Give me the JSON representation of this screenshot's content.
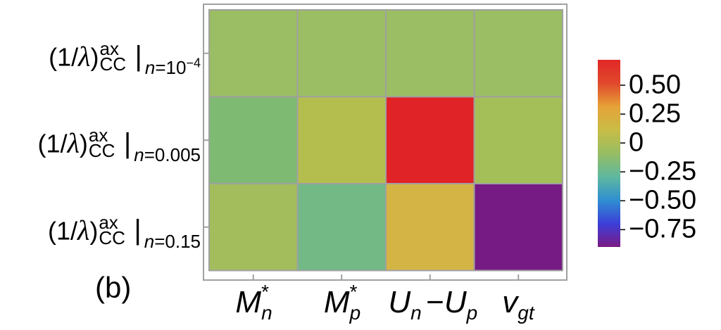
{
  "chart_data": {
    "type": "heatmap",
    "panel_label": "(b)",
    "columns": [
      {
        "main": "M",
        "sup": "*",
        "sub": "n"
      },
      {
        "main": "M",
        "sup": "*",
        "sub": "p"
      },
      {
        "main": "U",
        "sub": "n",
        "mid": "−",
        "main2": "U",
        "sub2": "p"
      },
      {
        "main": "v",
        "sub": "gt"
      }
    ],
    "rows": [
      {
        "label": "(1/λ)",
        "sup": "ax",
        "sub": "CC",
        "cond_var": "n",
        "cond_eq": "=",
        "cond_val": "10",
        "cond_exp": "−4"
      },
      {
        "label": "(1/λ)",
        "sup": "ax",
        "sub": "CC",
        "cond_var": "n",
        "cond_eq": "=",
        "cond_val": "0.005",
        "cond_exp": ""
      },
      {
        "label": "(1/λ)",
        "sup": "ax",
        "sub": "CC",
        "cond_var": "n",
        "cond_eq": "=",
        "cond_val": "0.15",
        "cond_exp": ""
      }
    ],
    "values": [
      [
        0.0,
        0.0,
        0.0,
        0.0
      ],
      [
        -0.1,
        0.1,
        0.72,
        0.05
      ],
      [
        0.02,
        -0.15,
        0.25,
        -0.9
      ]
    ],
    "colorbar": {
      "range": [
        -0.9,
        0.72
      ],
      "ticks": [
        0.5,
        0.25,
        0,
        -0.25,
        -0.5,
        -0.75
      ],
      "tick_labels": [
        "0.50",
        "0.25",
        "0",
        "−0.25",
        "−0.50",
        "−0.75"
      ],
      "colors": [
        "#7b1a84",
        "#3b3fd8",
        "#2f8fd1",
        "#5fb8a0",
        "#97bd63",
        "#c8bd46",
        "#e6a238",
        "#e0482b",
        "#e12828"
      ]
    },
    "cell_colors": [
      [
        "#9bbd63",
        "#9bbd63",
        "#9bbd63",
        "#9bbd63"
      ],
      [
        "#7fba73",
        "#b4be4e",
        "#e02326",
        "#a4be58"
      ],
      [
        "#a4bd5c",
        "#72b986",
        "#d4b445",
        "#771b84"
      ]
    ]
  }
}
